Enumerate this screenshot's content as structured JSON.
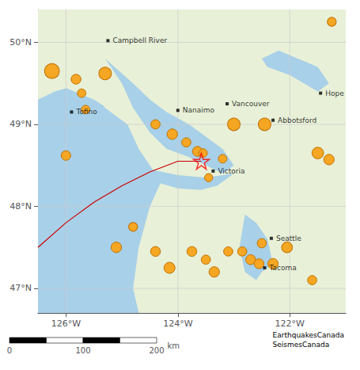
{
  "chart_data": {
    "type": "scatter",
    "xlim": [
      -126.5,
      -121.0
    ],
    "ylim": [
      46.7,
      50.4
    ],
    "xticks": [
      {
        "value": -126,
        "label": "126°W"
      },
      {
        "value": -124,
        "label": "124°W"
      },
      {
        "value": -122,
        "label": "122°W"
      }
    ],
    "yticks": [
      {
        "value": 47,
        "label": "47°N"
      },
      {
        "value": 48,
        "label": "48°N"
      },
      {
        "value": 49,
        "label": "49°N"
      },
      {
        "value": 50,
        "label": "50°N"
      }
    ],
    "grid": true,
    "areas": [
      {
        "color": "#e8f0d8",
        "x": [
          -126.5,
          -121.0,
          -121.0,
          -126.5
        ],
        "y": [
          46.7,
          46.7,
          50.4,
          50.4
        ]
      },
      {
        "color": "#a8d0e8",
        "x": [
          -126.5,
          -124.7,
          -124.8,
          -124.7,
          -124.5,
          -124.3,
          -124.5,
          -124.7,
          -124.9,
          -125.3,
          -125.5,
          -125.7,
          -126.2,
          -126.5
        ],
        "y": [
          46.7,
          46.7,
          47.0,
          47.5,
          48.0,
          48.3,
          48.5,
          48.7,
          49.0,
          49.2,
          49.4,
          49.5,
          49.4,
          49.3
        ]
      },
      {
        "color": "#e8f0d8",
        "x": [
          -128.5,
          -127.8,
          -126.5,
          -125.5,
          -124.5,
          -124.2,
          -123.5,
          -123.0,
          -123.2,
          -123.6,
          -124.2,
          -124.8,
          -125.5,
          -126.2,
          -127.0,
          -127.8,
          -128.5
        ],
        "y": [
          50.7,
          50.9,
          50.7,
          50.2,
          49.8,
          49.5,
          49.1,
          48.4,
          48.3,
          48.2,
          48.6,
          49.0,
          49.3,
          49.5,
          49.6,
          49.9,
          50.7
        ]
      },
      {
        "color": "#a8d0e8",
        "x": [
          -125.3,
          -124.8,
          -124.5,
          -124.2,
          -123.8,
          -123.5,
          -123.2,
          -123.0,
          -123.2,
          -123.5,
          -123.8,
          -124.2,
          -124.5,
          -124.8,
          -125.0,
          -125.3
        ],
        "y": [
          49.8,
          49.5,
          49.3,
          49.15,
          49.0,
          48.85,
          48.7,
          48.5,
          48.4,
          48.5,
          48.6,
          48.7,
          48.9,
          49.2,
          49.5,
          49.8
        ]
      },
      {
        "color": "#a8d0e8",
        "x": [
          -124.8,
          -124.5,
          -124.0,
          -123.5,
          -123.2,
          -123.0,
          -123.3,
          -123.6,
          -124.0,
          -124.4,
          -124.7,
          -124.9
        ],
        "y": [
          48.5,
          48.45,
          48.38,
          48.35,
          48.38,
          48.4,
          48.25,
          48.2,
          48.22,
          48.3,
          48.38,
          48.48
        ]
      },
      {
        "color": "#a8d0e8",
        "x": [
          -122.8,
          -122.6,
          -122.4,
          -122.3,
          -122.5,
          -122.6,
          -122.8,
          -122.9
        ],
        "y": [
          47.9,
          47.8,
          47.6,
          47.3,
          47.2,
          47.1,
          47.2,
          47.5
        ]
      },
      {
        "color": "#a8d0e8",
        "x": [
          -122.5,
          -122.2,
          -121.5,
          -121.3,
          -121.5,
          -122.0,
          -122.4
        ],
        "y": [
          49.8,
          49.9,
          49.7,
          49.5,
          49.4,
          49.6,
          49.7
        ]
      }
    ],
    "fault": {
      "color": "#cc0000",
      "x": [
        -126.5,
        -126.0,
        -125.5,
        -125.0,
        -124.5,
        -124.0,
        -123.58
      ],
      "y": [
        47.5,
        47.8,
        48.05,
        48.25,
        48.42,
        48.55,
        48.55
      ]
    },
    "earthquakes": {
      "color": "#f5a623",
      "edge_color": "#c07000",
      "marker": "circle",
      "x": [
        -126.25,
        -125.82,
        -125.72,
        -125.65,
        -125.3,
        -124.4,
        -124.1,
        -123.85,
        -123.65,
        -123.55,
        -123.0,
        -122.45,
        -121.5,
        -123.2,
        -123.45,
        -125.1,
        -124.4,
        -124.15,
        -123.75,
        -123.5,
        -123.35,
        -123.1,
        -122.85,
        -122.7,
        -122.55,
        -122.3,
        -122.5,
        -122.05,
        -121.6,
        -121.25,
        -126.0,
        -121.3,
        -124.8
      ],
      "y": [
        49.65,
        49.55,
        49.38,
        49.18,
        49.62,
        49.0,
        48.88,
        48.78,
        48.67,
        48.65,
        49.0,
        49.0,
        48.65,
        48.58,
        48.35,
        47.5,
        47.45,
        47.25,
        47.45,
        47.35,
        47.2,
        47.45,
        47.45,
        47.35,
        47.3,
        47.3,
        47.55,
        47.5,
        47.1,
        50.25,
        48.62,
        48.57,
        47.75
      ],
      "size": [
        180,
        80,
        60,
        60,
        130,
        70,
        90,
        70,
        80,
        60,
        130,
        130,
        110,
        60,
        55,
        90,
        80,
        100,
        80,
        70,
        90,
        70,
        70,
        80,
        80,
        90,
        70,
        95,
        70,
        65,
        75,
        90,
        65
      ]
    },
    "epicenter": {
      "x": -123.58,
      "y": 48.55,
      "color": "red",
      "marker": "star"
    },
    "cities": {
      "color": "black",
      "marker": "square",
      "names": [
        "Campbell River",
        "Nanaimo",
        "Vancouver",
        "Tofino",
        "Abbotsford",
        "Hope",
        "Victoria",
        "Seattle",
        "Tacoma"
      ],
      "x": [
        -125.25,
        -124.0,
        -123.12,
        -125.9,
        -122.3,
        -121.45,
        -123.37,
        -122.33,
        -122.45
      ],
      "y": [
        50.02,
        49.17,
        49.25,
        49.15,
        49.05,
        49.38,
        48.43,
        47.61,
        47.25
      ]
    },
    "scale_bar": {
      "ticks": [
        0,
        100,
        200
      ],
      "segments": [
        0,
        50,
        100,
        150,
        200
      ],
      "unit": "km"
    },
    "attribution": "EarthquakesCanada\nSeismesCanada"
  }
}
